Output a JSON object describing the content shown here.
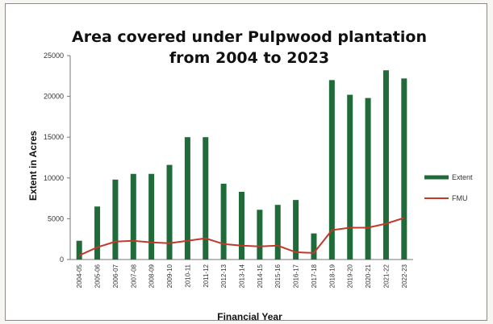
{
  "chart_data": {
    "type": "bar",
    "title_lines": [
      "Area covered under Pulpwood plantation",
      "from 2004 to 2023"
    ],
    "xlabel": "Financial Year",
    "ylabel": "Extent in Acres",
    "ylim": [
      0,
      25000
    ],
    "yticks": [
      0,
      5000,
      10000,
      15000,
      20000,
      25000
    ],
    "grid": false,
    "legend_position": "right",
    "categories": [
      "2004-05",
      "2005-06",
      "2006-07",
      "2007-08",
      "2008-09",
      "2009-10",
      "2010-11",
      "2011-12",
      "2012-13",
      "2013-14",
      "2014-15",
      "2015-16",
      "2016-17",
      "2017-18",
      "2018-19",
      "2019-20",
      "2020-21",
      "2021-22",
      "2022-23"
    ],
    "series": [
      {
        "name": "Extent",
        "kind": "bar",
        "color": "#1f6b3a",
        "values": [
          2300,
          6500,
          9800,
          10500,
          10500,
          11600,
          15000,
          15000,
          9300,
          8300,
          6100,
          6700,
          7300,
          3200,
          22000,
          20200,
          19800,
          23200,
          22200
        ]
      },
      {
        "name": "FMU",
        "kind": "line",
        "color": "#c0392b",
        "values": [
          500,
          1500,
          2200,
          2300,
          2100,
          2000,
          2300,
          2600,
          1900,
          1700,
          1600,
          1700,
          900,
          800,
          3600,
          3900,
          3900,
          4400,
          5100
        ]
      }
    ]
  }
}
